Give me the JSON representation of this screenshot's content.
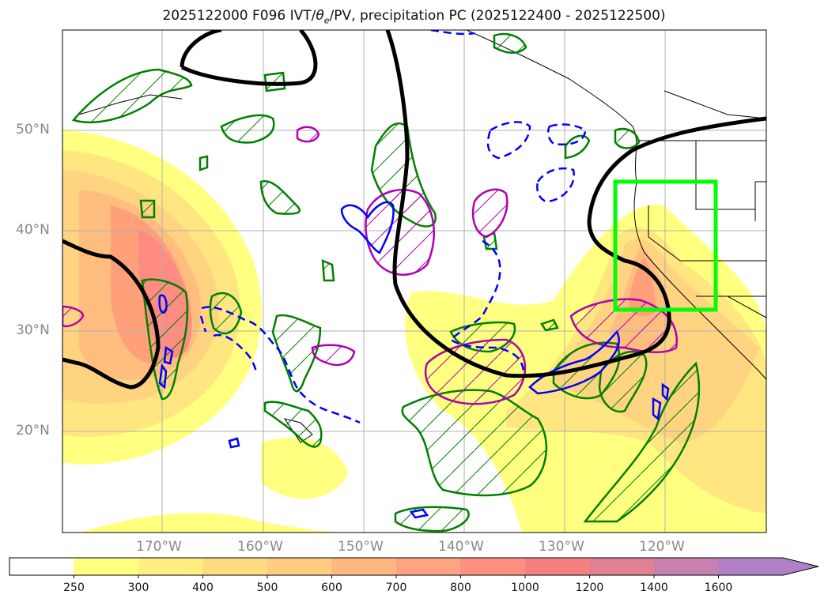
{
  "title_prefix": "2025122000 F096 IVT/",
  "title_theta": "θ",
  "title_theta_sub": "e",
  "title_suffix": "/PV, precipitation PC (2025122400 - 2025122500)",
  "lat_labels": [
    "50°N",
    "40°N",
    "30°N",
    "20°N"
  ],
  "lon_labels": [
    "170°W",
    "160°W",
    "150°W",
    "140°W",
    "130°W",
    "120°W"
  ],
  "colorbar": {
    "ticks": [
      "250",
      "300",
      "400",
      "500",
      "600",
      "700",
      "800",
      "1000",
      "1200",
      "1400",
      "1600"
    ],
    "colors": [
      "#ffff80",
      "#ffee80",
      "#ffdc80",
      "#ffcc80",
      "#ffb880",
      "#ffa480",
      "#ff9080",
      "#f48080",
      "#e08090",
      "#c880b0",
      "#b080c8"
    ],
    "extend": "max"
  },
  "colors": {
    "pv_contour": "#000000",
    "theta_solid": "#0000ff",
    "theta_dashed": "#0000ff",
    "precip_pc_positive": "#008000",
    "precip_pc_negative": "#b000b0",
    "target_box": "#00ff00"
  },
  "map": {
    "lon_range": [
      -180,
      -110
    ],
    "lat_range": [
      10,
      60
    ],
    "gridlines": true
  }
}
